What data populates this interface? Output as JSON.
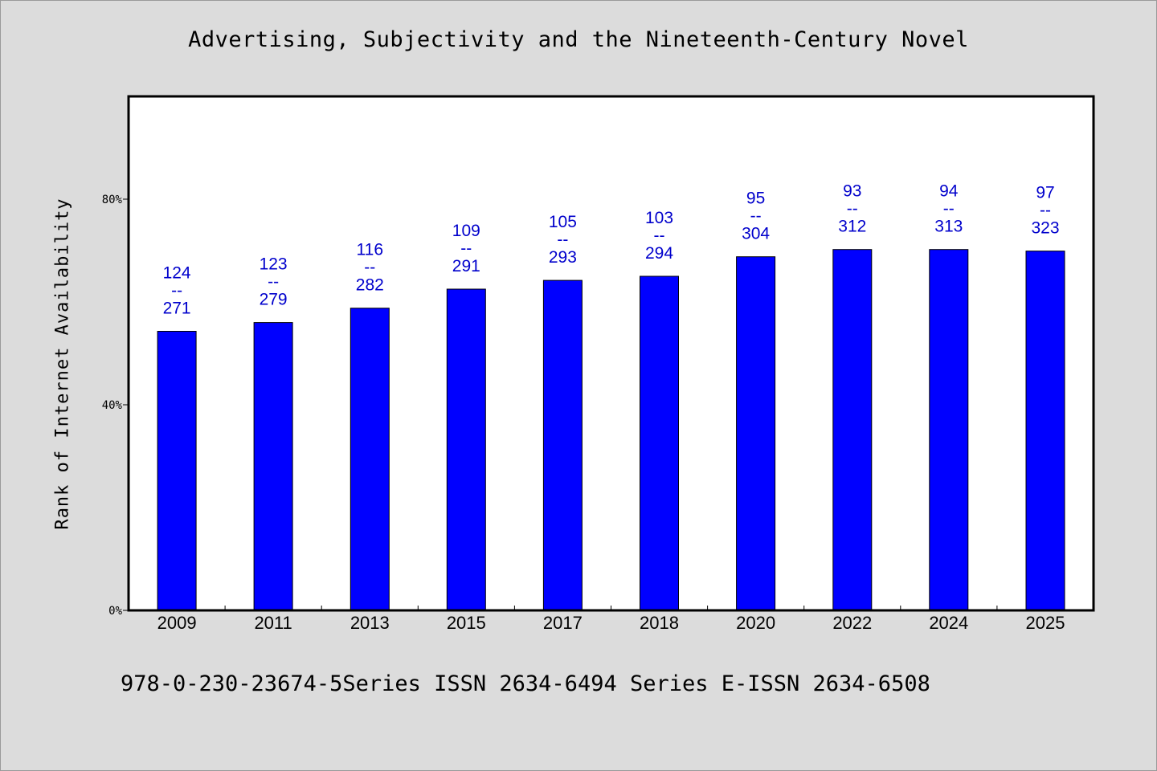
{
  "chart_data": {
    "type": "bar",
    "title": "Advertising, Subjectivity and the Nineteenth-Century Novel",
    "xlabel": "",
    "ylabel": "Rank of Internet Availability",
    "ylim": [
      0,
      100
    ],
    "yticks": [
      {
        "value": 0,
        "label": "0%"
      },
      {
        "value": 40,
        "label": "40%"
      },
      {
        "value": 80,
        "label": "80%"
      }
    ],
    "categories": [
      "2009",
      "2011",
      "2013",
      "2015",
      "2017",
      "2018",
      "2020",
      "2022",
      "2024",
      "2025"
    ],
    "values": [
      54.3,
      56.0,
      58.8,
      62.5,
      64.2,
      65.0,
      68.8,
      70.2,
      70.2,
      69.9
    ],
    "data_labels": [
      [
        "124",
        "--",
        "271"
      ],
      [
        "123",
        "--",
        "279"
      ],
      [
        "116",
        "--",
        "282"
      ],
      [
        "109",
        "--",
        "291"
      ],
      [
        "105",
        "--",
        "293"
      ],
      [
        "103",
        "--",
        "294"
      ],
      [
        "95",
        "--",
        "304"
      ],
      [
        "93",
        "--",
        "312"
      ],
      [
        "94",
        "--",
        "313"
      ],
      [
        "97",
        "--",
        "323"
      ]
    ],
    "grid": false,
    "legend": "none",
    "bar_color": "#0000ff",
    "label_color": "#0000cc"
  },
  "footer": "978-0-230-23674-5Series ISSN 2634-6494 Series E-ISSN 2634-6508"
}
